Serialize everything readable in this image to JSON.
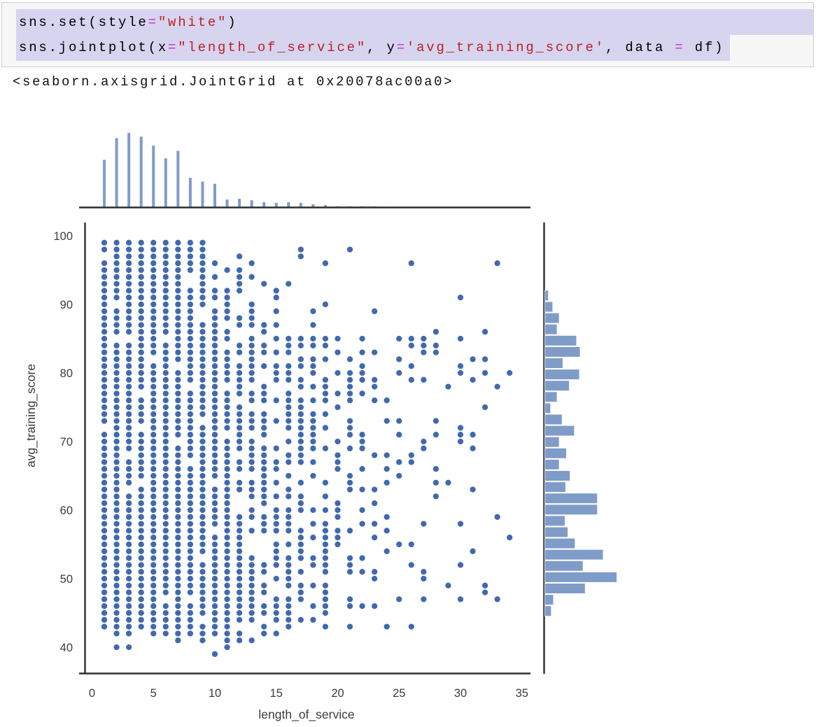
{
  "notebook": {
    "code_cell": {
      "lines": [
        {
          "tokens": [
            {
              "t": "sns.set(style",
              "c": "code"
            },
            {
              "t": "=",
              "c": "op"
            },
            {
              "t": "\"white\"",
              "c": "str"
            },
            {
              "t": ")",
              "c": "code"
            }
          ]
        },
        {
          "tokens": [
            {
              "t": "sns.jointplot(x",
              "c": "code"
            },
            {
              "t": "=",
              "c": "op"
            },
            {
              "t": "\"length_of_service\"",
              "c": "str"
            },
            {
              "t": ", y",
              "c": "code"
            },
            {
              "t": "=",
              "c": "op"
            },
            {
              "t": "'avg_training_score'",
              "c": "str"
            },
            {
              "t": ", data ",
              "c": "code"
            },
            {
              "t": "=",
              "c": "op"
            },
            {
              "t": " df)",
              "c": "code"
            }
          ]
        }
      ]
    },
    "output_text": "<seaborn.axisgrid.JointGrid at 0x20078ac00a0>"
  },
  "chart_data": {
    "type": "scatter",
    "subtype": "seaborn-jointplot",
    "title": "",
    "xlabel": "length_of_service",
    "ylabel": "avg_training_score",
    "x_ticks": [
      0,
      5,
      10,
      15,
      20,
      25,
      30,
      35
    ],
    "y_ticks": [
      100,
      90,
      80,
      70,
      60,
      50,
      40
    ],
    "xlim": [
      -1,
      36.5
    ],
    "ylim": [
      36,
      103
    ],
    "grid": false,
    "legend": "none",
    "colors": {
      "point": "#4169ad",
      "point_edge": "#ffffff",
      "bar": "#7f9cc9",
      "spine": "#2e2e2e",
      "tick_label": "#3c3c3c",
      "selection": "#d7d4f0",
      "cell_bg": "#f7f7f7",
      "string_token": "#ba2121",
      "operator_token": "#c52fc5"
    },
    "marginal_x_hist": {
      "x": [
        1,
        2,
        3,
        4,
        5,
        6,
        7,
        8,
        9,
        10,
        11,
        12,
        13,
        14,
        15,
        16,
        17,
        18,
        19,
        20,
        21,
        22,
        23,
        24,
        25,
        26
      ],
      "rel_height": [
        0.64,
        0.93,
        1.0,
        0.95,
        0.83,
        0.66,
        0.76,
        0.4,
        0.35,
        0.32,
        0.11,
        0.12,
        0.1,
        0.075,
        0.065,
        0.075,
        0.065,
        0.047,
        0.037,
        0.019,
        0.019,
        0.019,
        0.019,
        0.014,
        0.009,
        0.009
      ]
    },
    "marginal_y_hist": {
      "y_top": 92.0,
      "bin_size": 1.634,
      "rel_width": [
        0.05,
        0.11,
        0.2,
        0.17,
        0.44,
        0.49,
        0.25,
        0.48,
        0.34,
        0.17,
        0.08,
        0.24,
        0.41,
        0.2,
        0.3,
        0.2,
        0.35,
        0.29,
        0.73,
        0.73,
        0.28,
        0.32,
        0.42,
        0.81,
        0.53,
        1.0,
        0.56,
        0.12,
        0.09
      ]
    },
    "scatter": {
      "x_min": 1,
      "x_max": 34,
      "y_min": 39,
      "y_max": 99,
      "seed": 11,
      "col_prob": [
        0.97,
        0.97,
        0.96,
        0.96,
        0.95,
        0.95,
        0.95,
        0.93,
        0.92,
        0.9,
        0.84,
        0.82,
        0.78,
        0.74,
        0.72,
        0.68,
        0.62,
        0.57,
        0.52,
        0.44,
        0.38,
        0.33,
        0.3,
        0.24,
        0.21,
        0.18,
        0.26,
        0.24,
        0.2,
        0.16,
        0.12,
        0.08,
        0.05,
        0.02
      ],
      "high_falloff": {
        "y1": 86,
        "k1": 0.07,
        "xo1": 7,
        "floor1": 0.1,
        "y2": 94,
        "k2": 0.1,
        "xo2": 5,
        "floor2": 0.05
      },
      "low_falloff": {
        "y_a": 42,
        "f_a": 0.6,
        "y_b": 40,
        "f_b_near": 0.6,
        "f_b_far": 0.15,
        "y_c": 39,
        "f_c": 0.05
      },
      "extra_points": [
        [
          10,
          39
        ],
        [
          11,
          40
        ],
        [
          34,
          80
        ],
        [
          34,
          56
        ],
        [
          32,
          49
        ],
        [
          31,
          82
        ],
        [
          28,
          83
        ],
        [
          33,
          96
        ],
        [
          26,
          96
        ],
        [
          21,
          98
        ],
        [
          30,
          91
        ],
        [
          29,
          78
        ],
        [
          30,
          72
        ],
        [
          31,
          71
        ]
      ]
    }
  }
}
